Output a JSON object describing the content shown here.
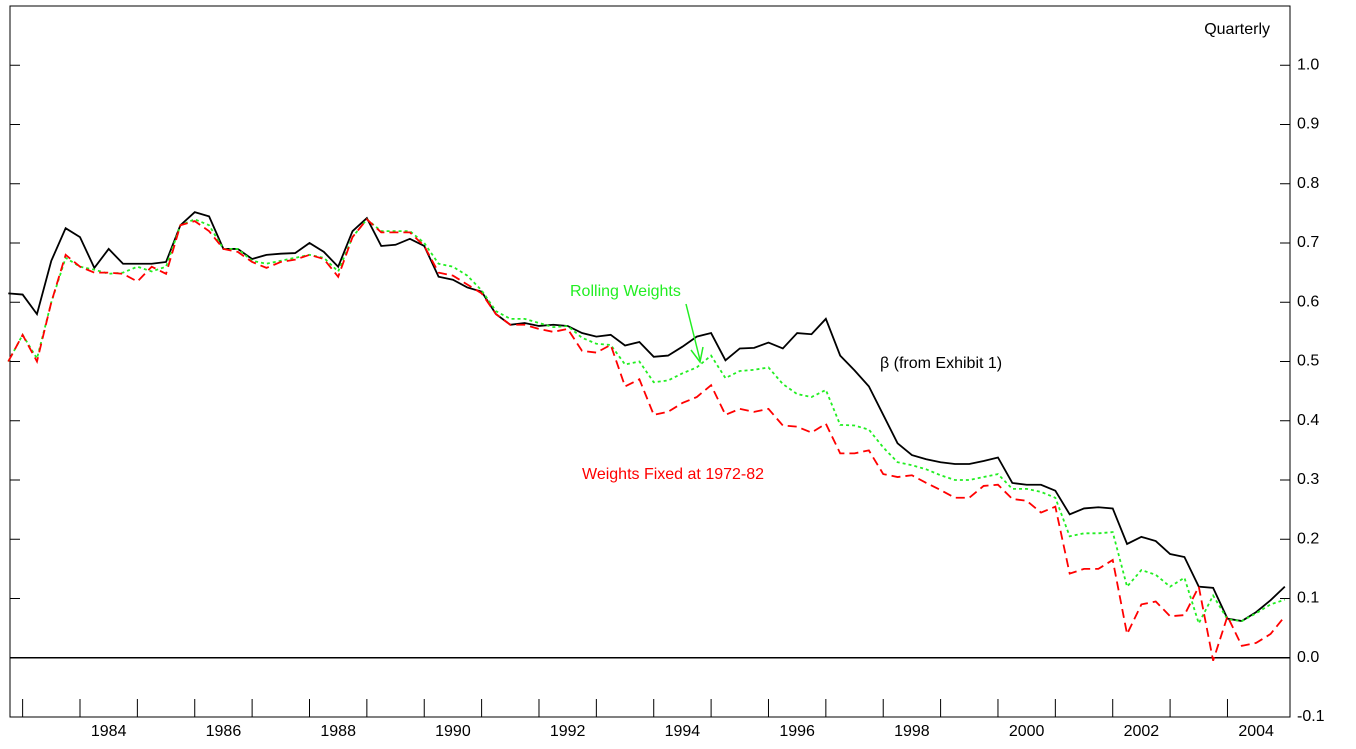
{
  "chart_data": {
    "type": "line",
    "title": "Quarterly",
    "x": [
      1982.75,
      1983,
      1983.25,
      1983.5,
      1983.75,
      1984,
      1984.25,
      1984.5,
      1984.75,
      1985,
      1985.25,
      1985.5,
      1985.75,
      1986,
      1986.25,
      1986.5,
      1986.75,
      1987,
      1987.25,
      1987.5,
      1987.75,
      1988,
      1988.25,
      1988.5,
      1988.75,
      1989,
      1989.25,
      1989.5,
      1989.75,
      1990,
      1990.25,
      1990.5,
      1990.75,
      1991,
      1991.25,
      1991.5,
      1991.75,
      1992,
      1992.25,
      1992.5,
      1992.75,
      1993,
      1993.25,
      1993.5,
      1993.75,
      1994,
      1994.25,
      1994.5,
      1994.75,
      1995,
      1995.25,
      1995.5,
      1995.75,
      1996,
      1996.25,
      1996.5,
      1996.75,
      1997,
      1997.25,
      1997.5,
      1997.75,
      1998,
      1998.25,
      1998.5,
      1998.75,
      1999,
      1999.25,
      1999.5,
      1999.75,
      2000,
      2000.25,
      2000.5,
      2000.75,
      2001,
      2001.25,
      2001.5,
      2001.75,
      2002,
      2002.25,
      2002.5,
      2002.75,
      2003,
      2003.25,
      2003.5,
      2003.75,
      2004,
      2004.25,
      2004.5,
      2004.75,
      2005
    ],
    "series": [
      {
        "name": "β (from Exhibit 1)",
        "color": "#000000",
        "dash": "none",
        "values": [
          0.615,
          0.613,
          0.58,
          0.67,
          0.725,
          0.71,
          0.658,
          0.69,
          0.665,
          0.665,
          0.665,
          0.668,
          0.73,
          0.752,
          0.745,
          0.69,
          0.69,
          0.673,
          0.68,
          0.682,
          0.683,
          0.7,
          0.685,
          0.66,
          0.72,
          0.742,
          0.695,
          0.697,
          0.707,
          0.695,
          0.643,
          0.638,
          0.625,
          0.618,
          0.58,
          0.562,
          0.565,
          0.56,
          0.562,
          0.56,
          0.548,
          0.542,
          0.545,
          0.527,
          0.533,
          0.508,
          0.51,
          0.525,
          0.542,
          0.548,
          0.502,
          0.522,
          0.523,
          0.532,
          0.522,
          0.548,
          0.546,
          0.572,
          0.51,
          0.485,
          0.458,
          0.41,
          0.362,
          0.342,
          0.335,
          0.33,
          0.327,
          0.327,
          0.332,
          0.338,
          0.295,
          0.292,
          0.292,
          0.282,
          0.242,
          0.252,
          0.254,
          0.252,
          0.192,
          0.204,
          0.197,
          0.175,
          0.17,
          0.12,
          0.118,
          0.066,
          0.062,
          0.077,
          0.097,
          0.12
        ]
      },
      {
        "name": "Rolling Weights",
        "color": "#22ee22",
        "dash": "3,3",
        "values": [
          0.5,
          0.545,
          0.505,
          0.6,
          0.675,
          0.66,
          0.655,
          0.648,
          0.65,
          0.66,
          0.652,
          0.66,
          0.73,
          0.74,
          0.73,
          0.69,
          0.69,
          0.67,
          0.665,
          0.67,
          0.675,
          0.68,
          0.675,
          0.652,
          0.71,
          0.74,
          0.72,
          0.72,
          0.72,
          0.7,
          0.665,
          0.66,
          0.645,
          0.62,
          0.585,
          0.572,
          0.572,
          0.565,
          0.558,
          0.56,
          0.54,
          0.53,
          0.528,
          0.495,
          0.5,
          0.465,
          0.468,
          0.48,
          0.49,
          0.51,
          0.472,
          0.484,
          0.486,
          0.49,
          0.462,
          0.445,
          0.44,
          0.452,
          0.393,
          0.392,
          0.385,
          0.355,
          0.33,
          0.325,
          0.318,
          0.308,
          0.3,
          0.3,
          0.305,
          0.31,
          0.285,
          0.285,
          0.28,
          0.27,
          0.205,
          0.21,
          0.21,
          0.212,
          0.12,
          0.148,
          0.14,
          0.12,
          0.135,
          0.058,
          0.105,
          0.065,
          0.062,
          0.075,
          0.09,
          0.098
        ]
      },
      {
        "name": "Weights Fixed at 1972-82",
        "color": "#ff0000",
        "dash": "9,5",
        "values": [
          0.5,
          0.545,
          0.5,
          0.6,
          0.68,
          0.66,
          0.65,
          0.65,
          0.648,
          0.635,
          0.66,
          0.648,
          0.73,
          0.737,
          0.72,
          0.69,
          0.685,
          0.668,
          0.658,
          0.668,
          0.672,
          0.68,
          0.673,
          0.643,
          0.71,
          0.74,
          0.718,
          0.718,
          0.718,
          0.695,
          0.65,
          0.645,
          0.63,
          0.615,
          0.58,
          0.562,
          0.562,
          0.555,
          0.55,
          0.555,
          0.518,
          0.515,
          0.528,
          0.458,
          0.47,
          0.41,
          0.415,
          0.43,
          0.44,
          0.46,
          0.41,
          0.42,
          0.415,
          0.42,
          0.392,
          0.39,
          0.38,
          0.395,
          0.345,
          0.345,
          0.35,
          0.31,
          0.305,
          0.308,
          0.295,
          0.283,
          0.27,
          0.27,
          0.29,
          0.292,
          0.268,
          0.265,
          0.245,
          0.255,
          0.142,
          0.15,
          0.15,
          0.165,
          0.04,
          0.09,
          0.095,
          0.07,
          0.072,
          0.12,
          -0.005,
          0.07,
          0.02,
          0.025,
          0.04,
          0.07
        ]
      }
    ],
    "xlim": [
      1982.78,
      2005.09
    ],
    "xticks": [
      1984,
      1986,
      1988,
      1990,
      1992,
      1994,
      1996,
      1998,
      2000,
      2002,
      2004
    ],
    "xminorticks": [
      1983,
      1985,
      1987,
      1989,
      1991,
      1993,
      1995,
      1997,
      1999,
      2001,
      2003
    ],
    "ylim": [
      -0.1,
      1.1
    ],
    "yticks": [
      -0.1,
      {
        "value": 0,
        "label": "0.0"
      },
      0.1,
      0.2,
      0.3,
      0.4,
      0.5,
      0.6,
      0.7,
      0.8,
      0.9,
      {
        "value": 1,
        "label": "1.0"
      }
    ],
    "zero_line": true
  }
}
